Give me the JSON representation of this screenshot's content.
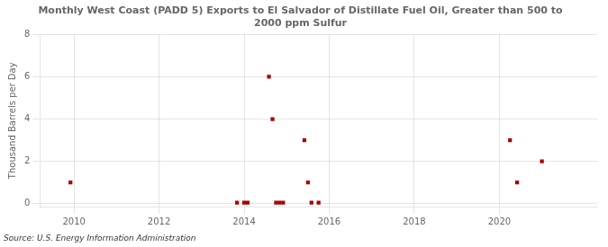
{
  "chart_data": {
    "type": "scatter",
    "title": "Monthly West Coast (PADD 5) Exports to El Salvador of Distillate Fuel Oil, Greater than 500 to\n2000 ppm Sulfur",
    "ylabel": "Thousand Barrels per Day",
    "annotations": [
      "Source: U.S. Energy Information Administration"
    ],
    "x": [
      2009.917,
      2013.833,
      2014.0,
      2014.083,
      2014.583,
      2014.667,
      2014.75,
      2014.833,
      2014.917,
      2015.417,
      2015.5,
      2015.583,
      2015.75,
      2020.25,
      2020.417,
      2021.0
    ],
    "values": [
      1.0,
      0.04,
      0.04,
      0.04,
      6.0,
      4.0,
      0.04,
      0.04,
      0.04,
      3.0,
      1.0,
      0.04,
      0.04,
      3.0,
      1.0,
      2.0
    ],
    "color": "#aa0000",
    "marker": "square",
    "xlim": [
      2009.2,
      2022.3
    ],
    "xticks": [
      2010,
      2012,
      2014,
      2016,
      2018,
      2020
    ],
    "ylim": [
      -0.15,
      8
    ],
    "yticks": [
      0,
      2,
      4,
      6,
      8
    ],
    "grid": true
  }
}
